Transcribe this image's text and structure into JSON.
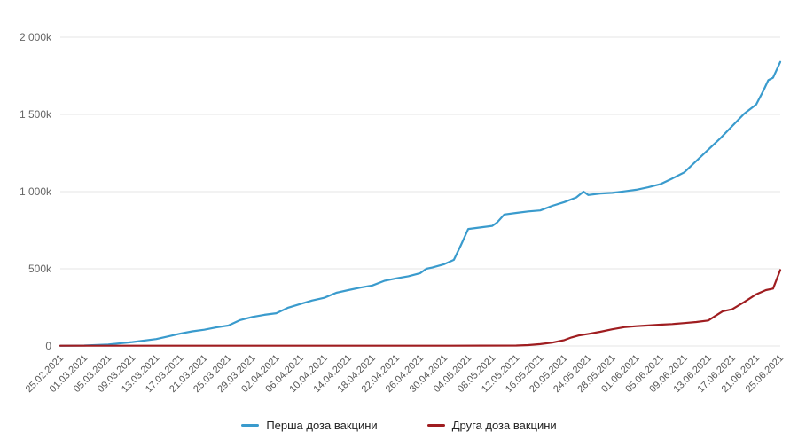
{
  "chart_data": {
    "type": "line",
    "title": "",
    "xlabel": "",
    "ylabel": "",
    "ylim": [
      0,
      2000
    ],
    "grid": "horizontal",
    "legend_position": "bottom-center",
    "point_format": "[x_tick_index, value_in_thousands]",
    "y_ticks": [
      {
        "value": 0,
        "label": "0"
      },
      {
        "value": 500,
        "label": "500k"
      },
      {
        "value": 1000,
        "label": "1 000k"
      },
      {
        "value": 1500,
        "label": "1 500k"
      },
      {
        "value": 2000,
        "label": "2 000k"
      }
    ],
    "x_tick_labels": [
      "25.02.2021",
      "01.03.2021",
      "05.03.2021",
      "09.03.2021",
      "13.03.2021",
      "17.03.2021",
      "21.03.2021",
      "25.03.2021",
      "29.03.2021",
      "02.04.2021",
      "06.04.2021",
      "10.04.2021",
      "14.04.2021",
      "18.04.2021",
      "22.04.2021",
      "26.04.2021",
      "30.04.2021",
      "04.05.2021",
      "08.05.2021",
      "12.05.2021",
      "16.05.2021",
      "20.05.2021",
      "24.05.2021",
      "28.05.2021",
      "01.06.2021",
      "05.06.2021",
      "09.06.2021",
      "13.06.2021",
      "17.06.2021",
      "21.06.2021",
      "25.06.2021"
    ],
    "series": [
      {
        "name": "Перша доза вакцини",
        "color": "#3a9bcd",
        "points": [
          [
            0,
            1
          ],
          [
            1,
            3
          ],
          [
            2,
            10
          ],
          [
            3,
            25
          ],
          [
            4,
            45
          ],
          [
            4.5,
            62
          ],
          [
            5,
            80
          ],
          [
            5.5,
            95
          ],
          [
            6,
            105
          ],
          [
            6.5,
            120
          ],
          [
            7,
            132
          ],
          [
            7.5,
            168
          ],
          [
            8,
            188
          ],
          [
            8.5,
            202
          ],
          [
            9,
            212
          ],
          [
            9.5,
            248
          ],
          [
            10,
            272
          ],
          [
            10.5,
            295
          ],
          [
            11,
            312
          ],
          [
            11.5,
            345
          ],
          [
            12,
            362
          ],
          [
            12.5,
            378
          ],
          [
            13,
            392
          ],
          [
            13.5,
            422
          ],
          [
            14,
            438
          ],
          [
            14.5,
            452
          ],
          [
            15,
            472
          ],
          [
            15.25,
            500
          ],
          [
            15.5,
            508
          ],
          [
            16,
            530
          ],
          [
            16.4,
            558
          ],
          [
            16.7,
            655
          ],
          [
            17,
            758
          ],
          [
            17.5,
            768
          ],
          [
            18,
            778
          ],
          [
            18.2,
            800
          ],
          [
            18.5,
            852
          ],
          [
            19,
            862
          ],
          [
            19.5,
            872
          ],
          [
            20,
            878
          ],
          [
            20.5,
            908
          ],
          [
            21,
            932
          ],
          [
            21.5,
            962
          ],
          [
            21.8,
            1000
          ],
          [
            22,
            978
          ],
          [
            22.5,
            988
          ],
          [
            23,
            992
          ],
          [
            23.5,
            1002
          ],
          [
            24,
            1012
          ],
          [
            24.5,
            1028
          ],
          [
            25,
            1048
          ],
          [
            25.5,
            1085
          ],
          [
            26,
            1125
          ],
          [
            26.5,
            1198
          ],
          [
            27,
            1272
          ],
          [
            27.5,
            1345
          ],
          [
            28,
            1425
          ],
          [
            28.5,
            1505
          ],
          [
            29,
            1565
          ],
          [
            29.3,
            1655
          ],
          [
            29.5,
            1722
          ],
          [
            29.7,
            1738
          ],
          [
            30,
            1840
          ]
        ]
      },
      {
        "name": "Друга доза вакцини",
        "color": "#9f1d20",
        "points": [
          [
            0,
            2
          ],
          [
            4,
            2
          ],
          [
            8,
            2
          ],
          [
            12,
            2
          ],
          [
            16,
            2
          ],
          [
            19,
            3
          ],
          [
            19.5,
            6
          ],
          [
            20,
            12
          ],
          [
            20.5,
            22
          ],
          [
            21,
            38
          ],
          [
            21.3,
            55
          ],
          [
            21.6,
            68
          ],
          [
            22,
            78
          ],
          [
            22.5,
            92
          ],
          [
            23,
            108
          ],
          [
            23.5,
            122
          ],
          [
            24,
            128
          ],
          [
            24.5,
            133
          ],
          [
            25,
            138
          ],
          [
            25.5,
            142
          ],
          [
            26,
            148
          ],
          [
            26.5,
            155
          ],
          [
            27,
            165
          ],
          [
            27.3,
            195
          ],
          [
            27.6,
            225
          ],
          [
            28,
            238
          ],
          [
            28.5,
            285
          ],
          [
            29,
            335
          ],
          [
            29.4,
            362
          ],
          [
            29.7,
            372
          ],
          [
            30,
            492
          ]
        ]
      }
    ]
  }
}
